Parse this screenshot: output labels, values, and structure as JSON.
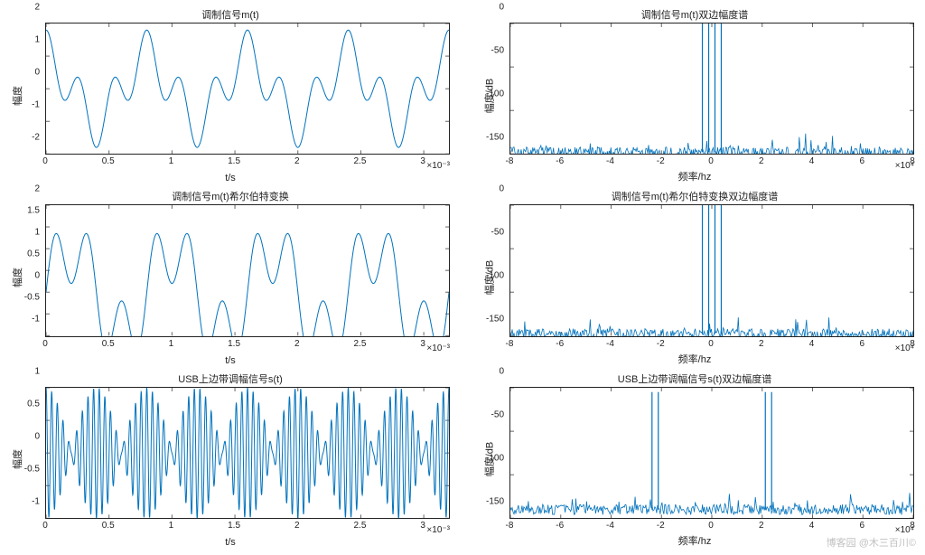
{
  "line_color": "#0072bd",
  "axis_color": "#222222",
  "bg_color": "#ffffff",
  "watermark": "博客园 @木三百川©",
  "panels": [
    {
      "id": "p11",
      "type": "line",
      "title": "调制信号m(t)",
      "xlabel": "t/s",
      "ylabel": "幅度",
      "x_exp": "×10⁻³",
      "xlim": [
        0,
        3.2
      ],
      "ylim": [
        -2,
        2
      ],
      "xticks": [
        0,
        0.5,
        1,
        1.5,
        2,
        2.5,
        3
      ],
      "yticks": [
        -2,
        -1,
        0,
        1,
        2
      ],
      "func": "twotone",
      "f1": 1250,
      "f2": 3750,
      "a1": 1.0,
      "a2": 0.8,
      "samples": 600
    },
    {
      "id": "p12",
      "type": "spectrum",
      "title": "调制信号m(t)双边幅度谱",
      "xlabel": "频率/hz",
      "ylabel": "幅度/dB",
      "x_exp": "×10⁴",
      "xlim": [
        -8,
        8
      ],
      "ylim": [
        -150,
        0
      ],
      "xticks": [
        -8,
        -6,
        -4,
        -2,
        0,
        2,
        4,
        6,
        8
      ],
      "yticks": [
        -150,
        -100,
        -50,
        0
      ],
      "noise_floor_mean": -148,
      "noise_floor_std": 6,
      "peaks": [
        {
          "f": -0.375,
          "db": 0
        },
        {
          "f": -0.125,
          "db": 0
        },
        {
          "f": 0.125,
          "db": 0
        },
        {
          "f": 0.375,
          "db": 0
        }
      ],
      "noise_bars": 450
    },
    {
      "id": "p21",
      "type": "line",
      "title": "调制信号m(t)希尔伯特变换",
      "xlabel": "t/s",
      "ylabel": "幅度",
      "x_exp": "×10⁻³",
      "xlim": [
        0,
        3.2
      ],
      "ylim": [
        -1,
        2
      ],
      "xticks": [
        0,
        0.5,
        1,
        1.5,
        2,
        2.5,
        3
      ],
      "yticks": [
        -1,
        -0.5,
        0,
        0.5,
        1,
        1.5,
        2
      ],
      "func": "twotone_hilbert",
      "f1": 1250,
      "f2": 3750,
      "a1": 1.0,
      "a2": 0.8,
      "samples": 600
    },
    {
      "id": "p22",
      "type": "spectrum",
      "title": "调制信号m(t)希尔伯特变换双边幅度谱",
      "xlabel": "频率/hz",
      "ylabel": "幅度/dB",
      "x_exp": "×10⁴",
      "xlim": [
        -8,
        8
      ],
      "ylim": [
        -150,
        0
      ],
      "xticks": [
        -8,
        -6,
        -4,
        -2,
        0,
        2,
        4,
        6,
        8
      ],
      "yticks": [
        -150,
        -100,
        -50,
        0
      ],
      "noise_floor_mean": -148,
      "noise_floor_std": 6,
      "peaks": [
        {
          "f": -0.375,
          "db": 0
        },
        {
          "f": -0.125,
          "db": 0
        },
        {
          "f": 0.125,
          "db": 0
        },
        {
          "f": 0.375,
          "db": 0
        }
      ],
      "noise_bars": 450
    },
    {
      "id": "p31",
      "type": "line",
      "title": "USB上边带调幅信号s(t)",
      "xlabel": "t/s",
      "ylabel": "幅度",
      "x_exp": "×10⁻³",
      "xlim": [
        0,
        3.2
      ],
      "ylim": [
        -1,
        1
      ],
      "xticks": [
        0,
        0.5,
        1,
        1.5,
        2,
        2.5,
        3
      ],
      "yticks": [
        -1,
        -0.5,
        0,
        0.5,
        1
      ],
      "func": "ssb",
      "f1": 1250,
      "f2": 3750,
      "a1": 0.55,
      "a2": 0.45,
      "fc": 20000,
      "samples": 2400
    },
    {
      "id": "p32",
      "type": "spectrum",
      "title": "USB上边带调幅信号s(t)双边幅度谱",
      "xlabel": "频率/hz",
      "ylabel": "幅度/dB",
      "x_exp": "×10⁴",
      "xlim": [
        -8,
        8
      ],
      "ylim": [
        -150,
        0
      ],
      "xticks": [
        -8,
        -6,
        -4,
        -2,
        0,
        2,
        4,
        6,
        8
      ],
      "yticks": [
        -150,
        -100,
        -50,
        0
      ],
      "noise_floor_mean": -140,
      "noise_floor_std": 6,
      "peaks": [
        {
          "f": -2.375,
          "db": -5
        },
        {
          "f": -2.125,
          "db": -5
        },
        {
          "f": 2.125,
          "db": -5
        },
        {
          "f": 2.375,
          "db": -5
        }
      ],
      "noise_bars": 450
    }
  ]
}
